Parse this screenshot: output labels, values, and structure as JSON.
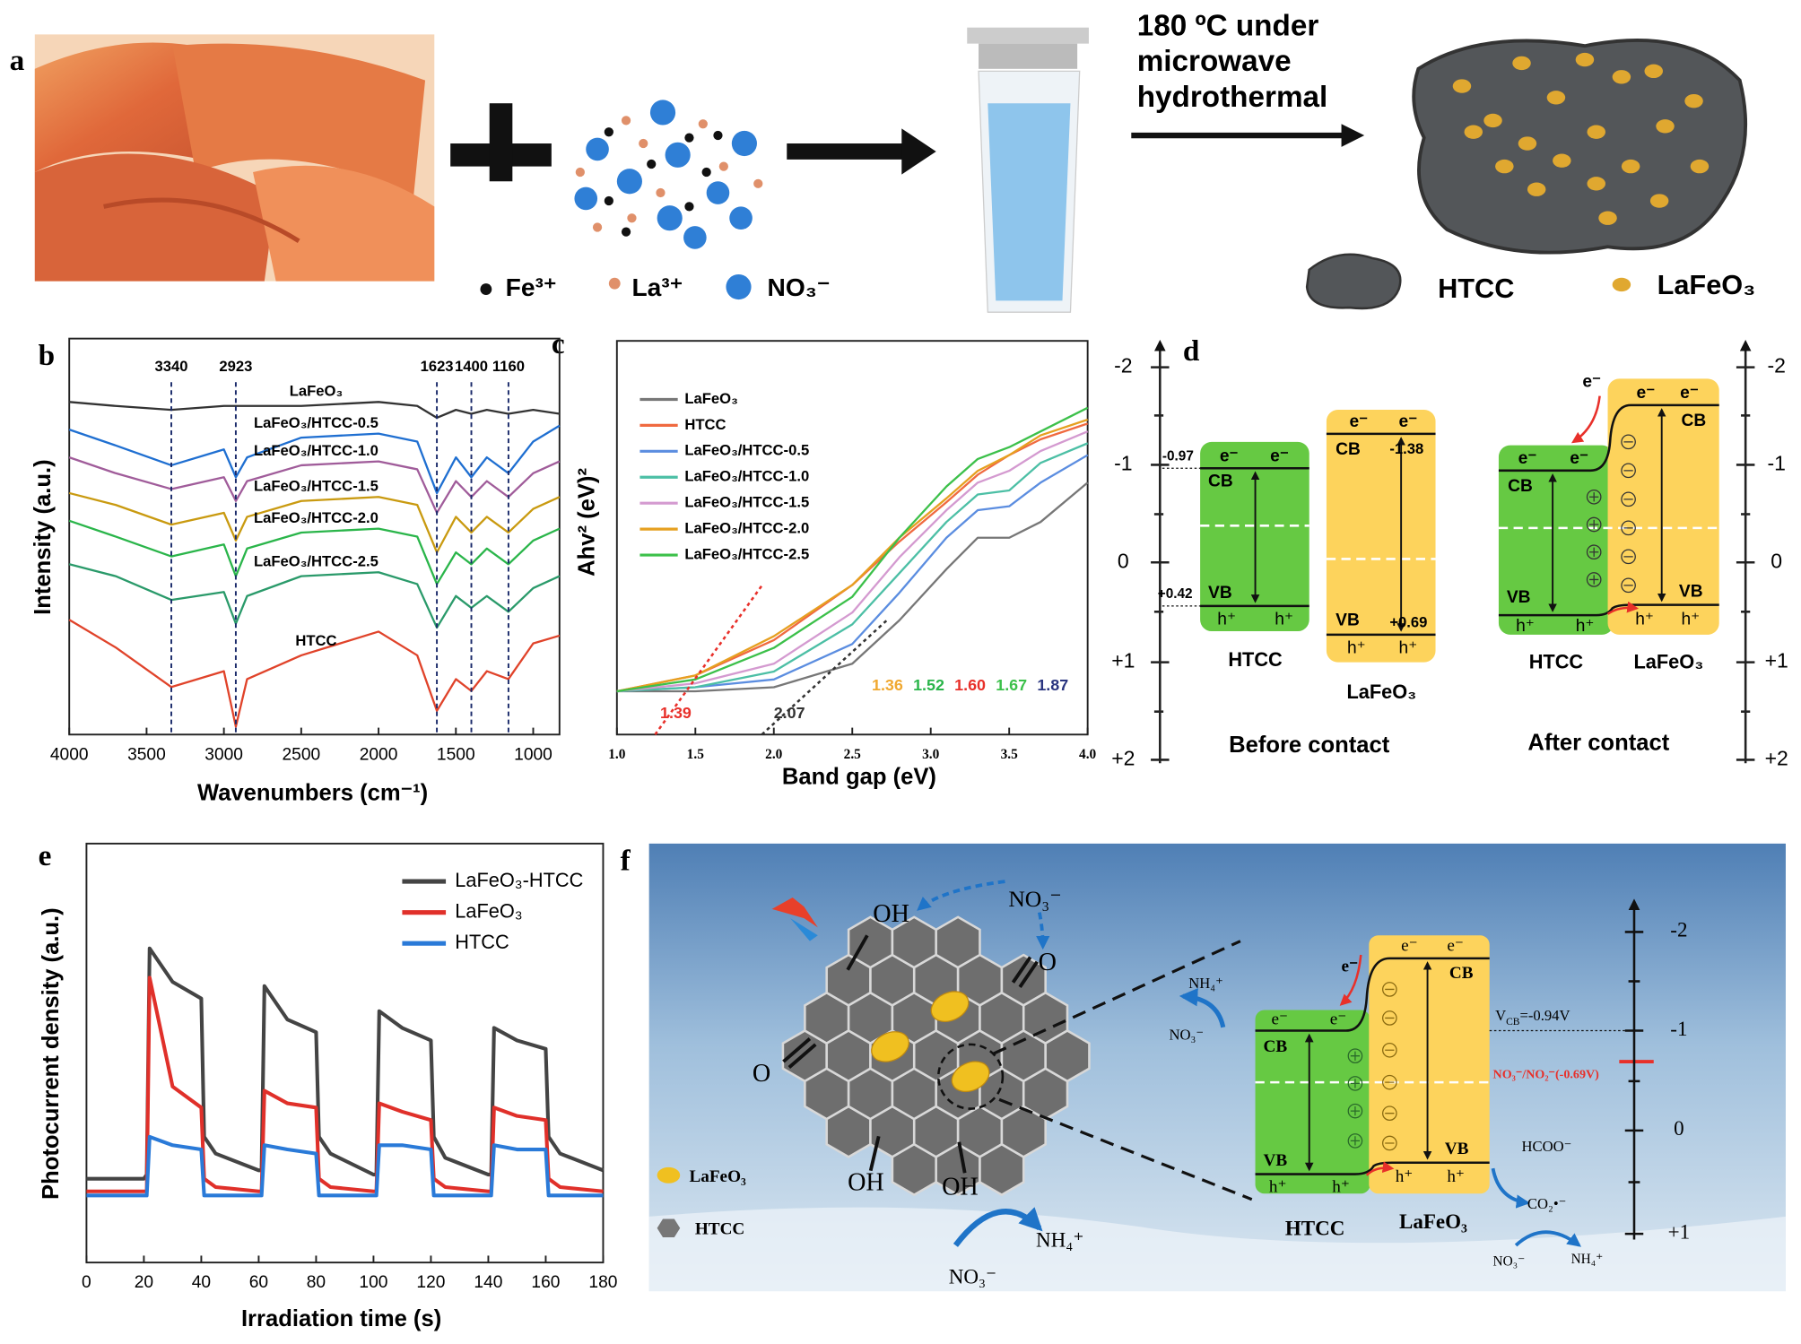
{
  "panel_a": {
    "label": "a",
    "step": [
      "180 ºC under",
      "microwave",
      "hydrothermal"
    ],
    "ions": [
      "Fe³⁺",
      "La³⁺",
      "NO₃⁻"
    ],
    "products": [
      "HTCC",
      "LaFeO₃"
    ]
  },
  "chart_data": [
    {
      "type": "line",
      "panel": "b",
      "xlabel": "Wavenumbers (cm⁻¹)",
      "ylabel": "Intensity (a.u.)",
      "x": [
        4000,
        3700,
        3340,
        3000,
        2923,
        2850,
        2500,
        2000,
        1750,
        1623,
        1500,
        1400,
        1300,
        1160,
        1000,
        830
      ],
      "xlim": [
        4000,
        830
      ],
      "xticks": [
        4000,
        3500,
        3000,
        2500,
        2000,
        1500,
        1000
      ],
      "ylim": [
        0,
        100
      ],
      "reference_lines": [
        3340,
        2923,
        1623,
        1400,
        1160
      ],
      "series": [
        {
          "name": "LaFeO₃",
          "color": "#333333",
          "values": [
            84,
            83,
            82,
            83,
            83,
            83,
            83,
            84,
            83,
            80,
            82,
            81,
            82,
            81,
            82,
            81
          ]
        },
        {
          "name": "LaFeO₃/HTCC-0.5",
          "color": "#1f6fd1",
          "values": [
            77,
            73,
            68,
            72,
            65,
            70,
            75,
            76,
            74,
            61,
            70,
            65,
            70,
            66,
            74,
            78
          ]
        },
        {
          "name": "LaFeO₃/HTCC-1.0",
          "color": "#a05c9a",
          "values": [
            70,
            66,
            62,
            65,
            59,
            64,
            68,
            69,
            67,
            56,
            64,
            60,
            64,
            60,
            66,
            69
          ]
        },
        {
          "name": "LaFeO₃/HTCC-1.5",
          "color": "#c99a10",
          "values": [
            61,
            58,
            53,
            56,
            49,
            55,
            59,
            60,
            58,
            46,
            55,
            51,
            55,
            51,
            57,
            60
          ]
        },
        {
          "name": "LaFeO₃/HTCC-2.0",
          "color": "#2ab54a",
          "values": [
            54,
            50,
            45,
            48,
            40,
            47,
            51,
            52,
            50,
            38,
            46,
            43,
            47,
            43,
            49,
            52
          ]
        },
        {
          "name": "LaFeO₃/HTCC-2.5",
          "color": "#2a9a6a",
          "values": [
            43,
            40,
            34,
            36,
            28,
            35,
            40,
            41,
            38,
            27,
            35,
            32,
            35,
            31,
            37,
            40
          ]
        },
        {
          "name": "HTCC",
          "color": "#e0432a",
          "values": [
            29,
            22,
            12,
            16,
            2,
            14,
            20,
            26,
            20,
            6,
            14,
            11,
            16,
            14,
            23,
            25
          ]
        }
      ]
    },
    {
      "type": "line",
      "panel": "c",
      "xlabel": "Band gap (eV)",
      "ylabel": "Ahv² (eV)²",
      "x": [
        1.0,
        1.5,
        2.0,
        2.5,
        2.8,
        3.1,
        3.3,
        3.5,
        3.7,
        4.0
      ],
      "xlim": [
        1,
        4
      ],
      "xticks": [
        {
          "value": 1,
          "label": "1.0"
        },
        1.5,
        {
          "value": 2,
          "label": "2.0"
        },
        2.5,
        {
          "value": 3,
          "label": "3.0"
        },
        3.5,
        {
          "value": 4,
          "label": "4.0"
        }
      ],
      "ylim": [
        0,
        100
      ],
      "intercepts": [
        1.39,
        2.07
      ],
      "intercept_colors": [
        "#e8302a",
        "#333333"
      ],
      "gap_labels": [
        1.36,
        1.52,
        {
          "value": 1.6,
          "label": "1.60"
        },
        1.67,
        1.87
      ],
      "gap_label_colors": [
        "#f0a830",
        "#2ab54a",
        "#e8302a",
        "#3cc04a",
        "#2a3580"
      ],
      "series": [
        {
          "name": "LaFeO₃",
          "color": "#777777",
          "values": [
            11,
            11,
            12,
            18,
            29,
            42,
            50,
            50,
            54,
            64
          ]
        },
        {
          "name": "HTCC",
          "color": "#f06a40",
          "values": [
            11,
            15,
            24,
            38,
            49,
            59,
            66,
            71,
            75,
            79
          ]
        },
        {
          "name": "LaFeO₃/HTCC-0.5",
          "color": "#5b8de0",
          "values": [
            11,
            12,
            14,
            23,
            36,
            50,
            57,
            58,
            64,
            71
          ]
        },
        {
          "name": "LaFeO₃/HTCC-1.0",
          "color": "#4cbfa5",
          "values": [
            11,
            12,
            16,
            28,
            41,
            54,
            61,
            62,
            69,
            74
          ]
        },
        {
          "name": "LaFeO₃/HTCC-1.5",
          "color": "#d49ad0",
          "values": [
            11,
            13,
            18,
            31,
            45,
            57,
            64,
            67,
            72,
            77
          ]
        },
        {
          "name": "LaFeO₃/HTCC-2.0",
          "color": "#e6a020",
          "values": [
            11,
            15,
            25,
            38,
            50,
            60,
            67,
            71,
            76,
            80
          ]
        },
        {
          "name": "LaFeO₃/HTCC-2.5",
          "color": "#3cc04a",
          "values": [
            11,
            14,
            22,
            35,
            50,
            63,
            70,
            73,
            77,
            83
          ]
        }
      ]
    },
    {
      "type": "line",
      "panel": "e",
      "xlabel": "Irradiation time (s)",
      "ylabel": "Photocurrent density (a.u.)",
      "x": [
        0,
        20,
        21,
        22,
        30,
        40,
        41,
        45,
        60,
        61,
        62,
        70,
        80,
        81,
        85,
        100,
        101,
        102,
        110,
        120,
        121,
        125,
        140,
        141,
        142,
        150,
        160,
        161,
        165,
        180
      ],
      "xlim": [
        0,
        180
      ],
      "xticks": [
        0,
        20,
        40,
        60,
        80,
        100,
        120,
        140,
        160,
        180
      ],
      "ylim": [
        0,
        100
      ],
      "series": [
        {
          "name": "LaFeO₃-HTCC",
          "color": "#444444",
          "values": [
            20,
            20,
            21,
            75,
            67,
            63,
            30,
            26,
            22,
            22,
            66,
            58,
            55,
            30,
            26,
            21,
            21,
            60,
            56,
            53,
            30,
            25,
            21,
            21,
            56,
            53,
            51,
            30,
            26,
            22
          ]
        },
        {
          "name": "LaFeO₃",
          "color": "#e0302a",
          "values": [
            17,
            17,
            17,
            68,
            42,
            37,
            20,
            18,
            17,
            17,
            41,
            38,
            37,
            20,
            18,
            17,
            17,
            38,
            36,
            34,
            20,
            18,
            17,
            17,
            37,
            35,
            34,
            20,
            18,
            17
          ]
        },
        {
          "name": "HTCC",
          "color": "#2a7ad8",
          "values": [
            16,
            16,
            16,
            30,
            28,
            27,
            16,
            16,
            16,
            16,
            28,
            27,
            26,
            16,
            16,
            16,
            16,
            28,
            28,
            27,
            16,
            16,
            16,
            16,
            28,
            27,
            27,
            16,
            16,
            16
          ]
        }
      ]
    }
  ],
  "panel_d": {
    "label": "d",
    "axis_ticks": [
      "-2",
      "-1",
      "0",
      "+1",
      "+2"
    ],
    "electron": "e⁻",
    "hole": "h⁺",
    "cb": "CB",
    "vb": "VB",
    "htcc_cb": "-0.97",
    "htcc_vb": "+0.42",
    "lfo_cb": "-1.38",
    "lfo_vb": "+0.69",
    "htcc": "HTCC",
    "lfo": "LaFeO₃",
    "before": "Before contact",
    "after": "After contact"
  },
  "panel_f": {
    "label": "f",
    "nitrate": "NO₃⁻",
    "ammonium": "NH₄⁺",
    "oh": "OH",
    "o": "O",
    "lfo": "LaFeO₃",
    "htcc": "HTCC",
    "electron": "e⁻",
    "hole": "h⁺",
    "cb": "CB",
    "vb": "VB",
    "vcb": {
      "v": "V",
      "sub": "CB",
      "rest": "=-0.94V"
    },
    "redox": "NO₃⁻/NO₂⁻(-0.69V)",
    "formate": "HCOO⁻",
    "co2": "CO₂•⁻",
    "axis_ticks": [
      "-2",
      "-1",
      "0",
      "+1"
    ]
  }
}
